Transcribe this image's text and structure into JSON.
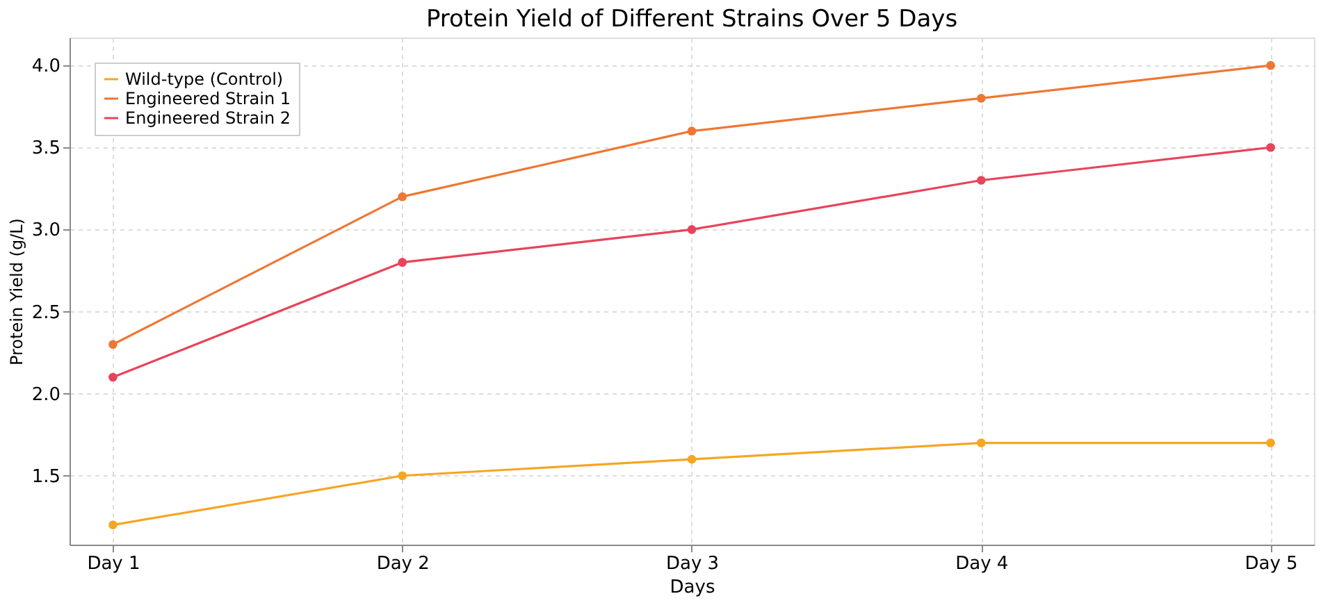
{
  "chart_data": {
    "type": "line",
    "title": "Protein Yield of Different Strains Over 5 Days",
    "xlabel": "Days",
    "ylabel": "Protein Yield (g/L)",
    "categories": [
      "Day 1",
      "Day 2",
      "Day 3",
      "Day 4",
      "Day 5"
    ],
    "series": [
      {
        "name": "Wild-type (Control)",
        "color": "#f5a623",
        "values": [
          1.2,
          1.5,
          1.6,
          1.7,
          1.7
        ]
      },
      {
        "name": "Engineered Strain 1",
        "color": "#ee7733",
        "values": [
          2.3,
          3.2,
          3.6,
          3.8,
          4.0
        ]
      },
      {
        "name": "Engineered Strain 2",
        "color": "#e8435a",
        "values": [
          2.1,
          2.8,
          3.0,
          3.3,
          3.5
        ]
      }
    ],
    "ylim": [
      1.08,
      4.17
    ],
    "yticks": [
      1.5,
      {
        "value": 2,
        "label": "2.0"
      },
      2.5,
      {
        "value": 3,
        "label": "3.0"
      },
      3.5,
      {
        "value": 4,
        "label": "4.0"
      }
    ],
    "grid": true,
    "legend": "top left",
    "marker": "circle",
    "line_style": "solid"
  }
}
